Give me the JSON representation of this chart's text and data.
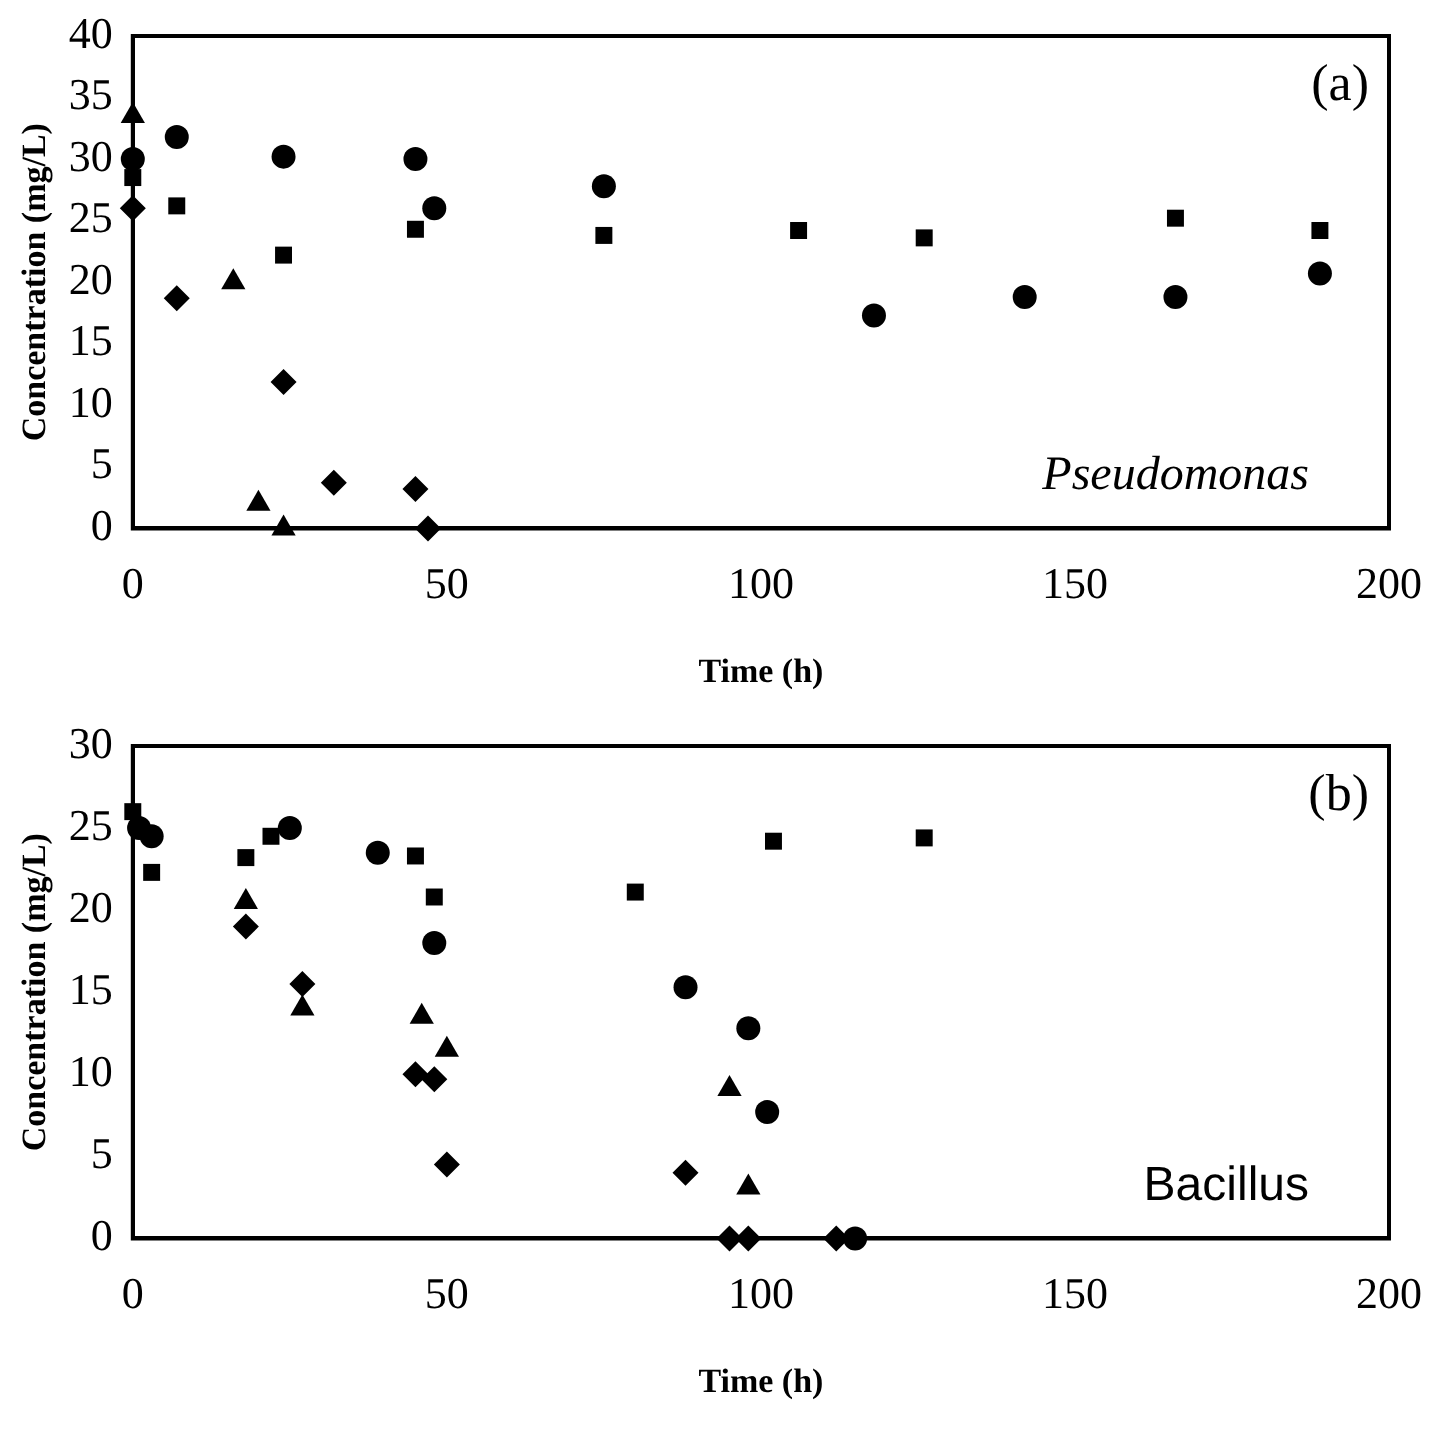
{
  "chart_data": [
    {
      "type": "scatter",
      "xlabel": "Time (h)",
      "ylabel": "Concentration (mg/L)",
      "annotations": [
        "(a)",
        "Pseudomonas"
      ],
      "xlim": [
        0,
        200
      ],
      "xticks": [
        0,
        50,
        100,
        150,
        200
      ],
      "ylim": [
        0,
        40
      ],
      "yticks": [
        0,
        5,
        10,
        15,
        20,
        25,
        30,
        35,
        40
      ],
      "grid": false,
      "legend": false,
      "series": [
        {
          "color": "#000000",
          "marker": "circle",
          "x": [
            0,
            7,
            24,
            45,
            48,
            75,
            118,
            142,
            166,
            189
          ],
          "values": [
            30,
            31.8,
            30.2,
            30,
            26,
            27.8,
            17.3,
            18.8,
            18.8,
            20.7
          ]
        },
        {
          "color": "#000000",
          "marker": "square",
          "x": [
            0,
            7,
            24,
            45,
            75,
            106,
            126,
            166,
            189
          ],
          "values": [
            28.5,
            26.2,
            22.2,
            24.3,
            23.8,
            24.2,
            23.6,
            25.2,
            24.2
          ]
        },
        {
          "color": "#000000",
          "marker": "triangle",
          "x": [
            0,
            16,
            20,
            24
          ],
          "values": [
            33.5,
            20,
            2,
            0
          ]
        },
        {
          "color": "#000000",
          "marker": "diamond",
          "x": [
            0,
            7,
            24,
            32,
            45,
            47
          ],
          "values": [
            26,
            18.7,
            11.9,
            3.7,
            3.2,
            0
          ]
        }
      ]
    },
    {
      "type": "scatter",
      "xlabel": "Time (h)",
      "ylabel": "Concentration (mg/L)",
      "annotations": [
        "(b)",
        "Bacillus"
      ],
      "xlim": [
        0,
        200
      ],
      "xticks": [
        0,
        50,
        100,
        150,
        200
      ],
      "ylim": [
        0,
        30
      ],
      "yticks": [
        0,
        5,
        10,
        15,
        20,
        25,
        30
      ],
      "grid": false,
      "legend": false,
      "series": [
        {
          "color": "#000000",
          "marker": "circle",
          "x": [
            1,
            3,
            25,
            39,
            48,
            88,
            98,
            101,
            115
          ],
          "values": [
            25,
            24.5,
            25,
            23.5,
            18,
            15.3,
            12.8,
            7.7,
            0
          ]
        },
        {
          "color": "#000000",
          "marker": "square",
          "x": [
            0,
            3,
            18,
            22,
            45,
            48,
            80,
            102,
            126
          ],
          "values": [
            26,
            22.3,
            23.2,
            24.5,
            23.3,
            20.8,
            21.1,
            24.2,
            24.4
          ]
        },
        {
          "color": "#000000",
          "marker": "triangle",
          "x": [
            18,
            27,
            46,
            50,
            95,
            98
          ],
          "values": [
            20.5,
            14,
            13.5,
            11.5,
            9.1,
            3.1
          ]
        },
        {
          "color": "#000000",
          "marker": "diamond",
          "x": [
            18,
            27,
            45,
            48,
            50,
            88,
            95,
            98,
            112
          ],
          "values": [
            19,
            15.5,
            10,
            9.7,
            4.5,
            4,
            0,
            0,
            0
          ]
        }
      ]
    }
  ]
}
